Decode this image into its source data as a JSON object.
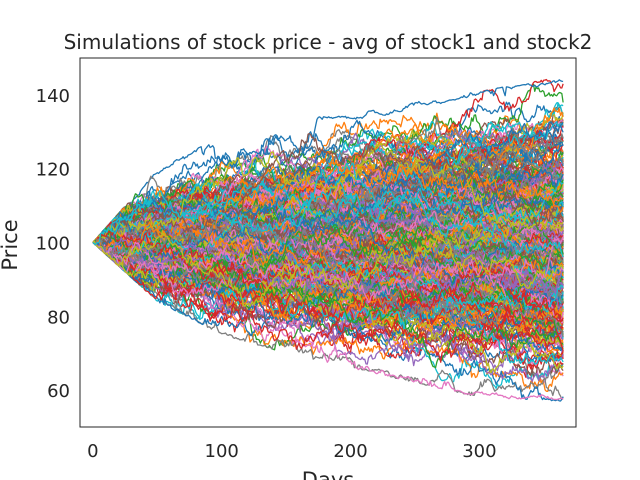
{
  "chart_data": {
    "type": "line",
    "title": "Simulations of stock price - avg of stock1 and stock2",
    "xlabel": "Days",
    "ylabel": "Price",
    "xlim": [
      -10,
      375
    ],
    "ylim": [
      50,
      150
    ],
    "xticks": [
      0,
      100,
      200,
      300
    ],
    "yticks": [
      60,
      80,
      100,
      120,
      140
    ],
    "grid": false,
    "legend": "none",
    "num_simulations": 500,
    "num_days": 365,
    "start_value": 100,
    "observed_envelope": {
      "x": [
        0,
        50,
        100,
        150,
        200,
        250,
        300,
        365
      ],
      "upper": [
        100,
        120,
        129,
        133,
        135,
        138,
        141,
        145
      ],
      "lower": [
        100,
        84,
        75,
        70,
        66,
        62,
        58,
        57
      ]
    },
    "palette": [
      "#1f77b4",
      "#ff7f0e",
      "#2ca02c",
      "#d62728",
      "#9467bd",
      "#8c564b",
      "#e377c2",
      "#7f7f7f",
      "#bcbd22",
      "#17becf"
    ]
  }
}
